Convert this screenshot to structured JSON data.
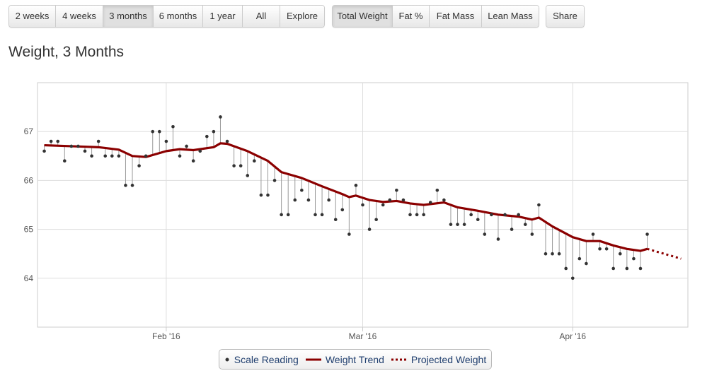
{
  "range_buttons": [
    {
      "label": "2 weeks"
    },
    {
      "label": "4 weeks"
    },
    {
      "label": "3 months",
      "active": true
    },
    {
      "label": "6 months"
    },
    {
      "label": "1 year"
    },
    {
      "label": "All"
    },
    {
      "label": "Explore"
    }
  ],
  "metric_buttons": [
    {
      "label": "Total Weight",
      "active": true
    },
    {
      "label": "Fat %"
    },
    {
      "label": "Fat Mass"
    },
    {
      "label": "Lean Mass"
    }
  ],
  "share_label": "Share",
  "title": "Weight, 3 Months",
  "colors": {
    "trend": "#8b0000",
    "point": "#333333",
    "stem": "#999999",
    "grid": "#dddddd"
  },
  "chart_data": {
    "type": "line",
    "xlim": [
      "2016-01-13",
      "2016-04-18"
    ],
    "ylim": [
      63,
      68
    ],
    "yticks": [
      64,
      65,
      66,
      67
    ],
    "xticks": [
      {
        "date": "2016-02-01",
        "label": "Feb '16"
      },
      {
        "date": "2016-03-01",
        "label": "Mar '16"
      },
      {
        "date": "2016-04-01",
        "label": "Apr '16"
      }
    ],
    "grid": true,
    "legend_position": "bottom",
    "series": [
      {
        "name": "Scale Reading",
        "kind": "scatter",
        "start": "2016-01-14",
        "values": [
          66.6,
          66.8,
          66.8,
          66.4,
          66.7,
          66.7,
          66.6,
          66.5,
          66.8,
          66.5,
          66.5,
          66.5,
          65.9,
          65.9,
          66.3,
          66.5,
          67.0,
          67.0,
          66.8,
          67.1,
          66.5,
          66.7,
          66.4,
          66.6,
          66.9,
          67.0,
          67.3,
          66.8,
          66.3,
          66.3,
          66.1,
          66.4,
          65.7,
          65.7,
          66.0,
          65.3,
          65.3,
          65.6,
          65.8,
          65.6,
          65.3,
          65.3,
          65.6,
          65.2,
          65.4,
          64.9,
          65.9,
          65.5,
          65.0,
          65.2,
          65.5,
          65.6,
          65.8,
          65.6,
          65.3,
          65.3,
          65.3,
          65.55,
          65.8,
          65.6,
          65.1,
          65.1,
          65.1,
          65.3,
          65.2,
          64.9,
          65.3,
          64.8,
          65.3,
          65.0,
          65.3,
          65.1,
          64.9,
          65.5,
          64.5,
          64.5,
          64.5,
          64.2,
          64.0,
          64.4,
          64.3,
          64.9,
          64.6,
          64.6,
          64.2,
          64.5,
          64.2,
          64.4,
          64.2,
          64.9
        ]
      },
      {
        "name": "Weight Trend",
        "kind": "line",
        "points": [
          [
            "2016-01-14",
            66.72
          ],
          [
            "2016-01-18",
            66.7
          ],
          [
            "2016-01-22",
            66.68
          ],
          [
            "2016-01-25",
            66.63
          ],
          [
            "2016-01-27",
            66.5
          ],
          [
            "2016-01-29",
            66.48
          ],
          [
            "2016-02-01",
            66.6
          ],
          [
            "2016-02-03",
            66.64
          ],
          [
            "2016-02-05",
            66.62
          ],
          [
            "2016-02-08",
            66.68
          ],
          [
            "2016-02-09",
            66.76
          ],
          [
            "2016-02-10",
            66.75
          ],
          [
            "2016-02-13",
            66.6
          ],
          [
            "2016-02-16",
            66.4
          ],
          [
            "2016-02-18",
            66.17
          ],
          [
            "2016-02-21",
            66.05
          ],
          [
            "2016-02-24",
            65.88
          ],
          [
            "2016-02-27",
            65.72
          ],
          [
            "2016-02-28",
            65.66
          ],
          [
            "2016-02-29",
            65.69
          ],
          [
            "2016-03-02",
            65.6
          ],
          [
            "2016-03-04",
            65.56
          ],
          [
            "2016-03-06",
            65.58
          ],
          [
            "2016-03-08",
            65.53
          ],
          [
            "2016-03-10",
            65.5
          ],
          [
            "2016-03-13",
            65.55
          ],
          [
            "2016-03-15",
            65.45
          ],
          [
            "2016-03-18",
            65.38
          ],
          [
            "2016-03-21",
            65.3
          ],
          [
            "2016-03-24",
            65.26
          ],
          [
            "2016-03-26",
            65.2
          ],
          [
            "2016-03-27",
            65.24
          ],
          [
            "2016-03-29",
            65.06
          ],
          [
            "2016-04-01",
            64.84
          ],
          [
            "2016-04-03",
            64.76
          ],
          [
            "2016-04-05",
            64.76
          ],
          [
            "2016-04-07",
            64.67
          ],
          [
            "2016-04-09",
            64.6
          ],
          [
            "2016-04-11",
            64.56
          ],
          [
            "2016-04-12",
            64.6
          ]
        ]
      },
      {
        "name": "Projected Weight",
        "kind": "dotted-line",
        "points": [
          [
            "2016-04-12",
            64.6
          ],
          [
            "2016-04-17",
            64.4
          ]
        ]
      }
    ]
  }
}
